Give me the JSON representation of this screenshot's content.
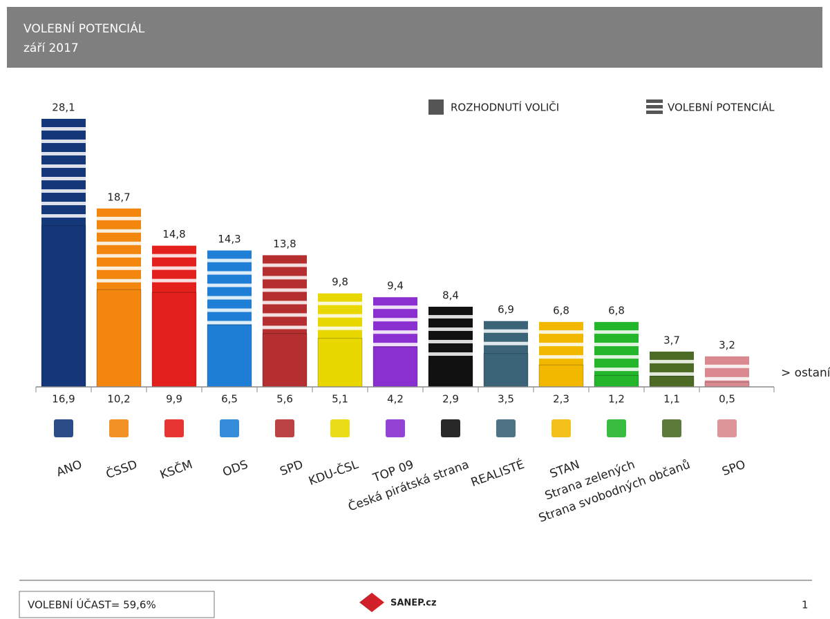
{
  "chart_data": {
    "type": "bar",
    "title": "VOLEBNÍ POTENCIÁL",
    "subtitle": "září 2017",
    "annotation": "> ostaní",
    "categories": [
      "ANO",
      "ČSSD",
      "KSČM",
      "ODS",
      "SPD",
      "KDU-ČSL",
      "TOP 09",
      "Česká pirátská strana",
      "REALISTÉ",
      "STAN",
      "Strana zelených",
      "Strana svobodných občanů",
      "SPO"
    ],
    "colors": [
      "#15387a",
      "#f2860f",
      "#e3201c",
      "#1f7fd6",
      "#b52f30",
      "#e9d800",
      "#8a2fd0",
      "#111111",
      "#3b6478",
      "#f2b800",
      "#23b62a",
      "#4d6b25",
      "#d9898f"
    ],
    "series": [
      {
        "name": "ROZHODNUTÍ VOLIČI",
        "color": "#555555",
        "values": [
          16.9,
          10.2,
          9.9,
          6.5,
          5.6,
          5.1,
          4.2,
          2.9,
          3.5,
          2.3,
          1.2,
          1.1,
          0.5
        ],
        "value_labels": [
          "16,9",
          "10,2",
          "9,9",
          "6,5",
          "5,6",
          "5,1",
          "4,2",
          "2,9",
          "3,5",
          "2,3",
          "1,2",
          "1,1",
          "0,5"
        ]
      },
      {
        "name": "VOLEBNÍ POTENCIÁL",
        "color": "#555555",
        "values": [
          28.1,
          18.7,
          14.8,
          14.3,
          13.8,
          9.8,
          9.4,
          8.4,
          6.9,
          6.8,
          6.8,
          3.7,
          3.2
        ],
        "value_labels": [
          "28,1",
          "18,7",
          "14,8",
          "14,3",
          "13,8",
          "9,8",
          "9,4",
          "8,4",
          "6,9",
          "6,8",
          "6,8",
          "3,7",
          "3,2"
        ]
      }
    ]
  },
  "footer": {
    "turnout": "VOLEBNÍ ÚČAST= 59,6%",
    "logo": "SANEP.cz",
    "page": "1"
  }
}
